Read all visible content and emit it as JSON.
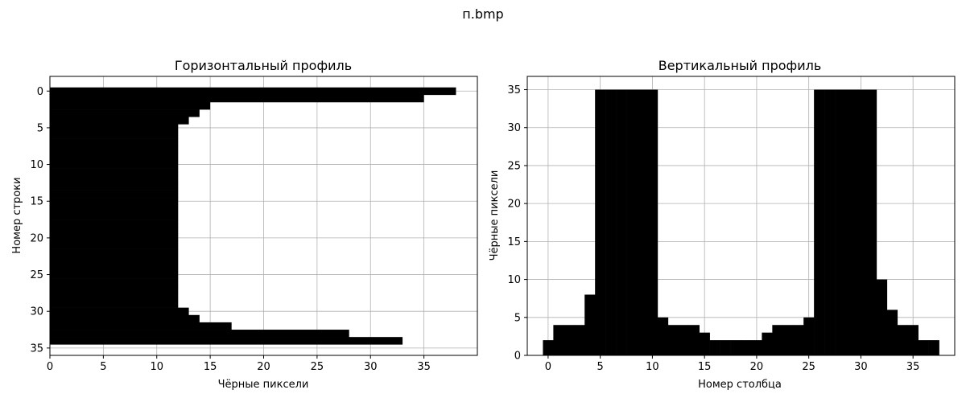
{
  "figure": {
    "suptitle": "п.bmp"
  },
  "chart_data": [
    {
      "type": "bar",
      "orientation": "horizontal",
      "title": "Горизонтальный профиль",
      "xlabel": "Чёрные пиксели",
      "ylabel": "Номер строки",
      "xlim": [
        0,
        40
      ],
      "ylim": [
        36,
        -2
      ],
      "y_inverted": true,
      "xticks": [
        0,
        5,
        10,
        15,
        20,
        25,
        30,
        35
      ],
      "yticks": [
        0,
        5,
        10,
        15,
        20,
        25,
        30,
        35
      ],
      "grid": true,
      "bar_color": "#000000",
      "categories": [
        0,
        1,
        2,
        3,
        4,
        5,
        6,
        7,
        8,
        9,
        10,
        11,
        12,
        13,
        14,
        15,
        16,
        17,
        18,
        19,
        20,
        21,
        22,
        23,
        24,
        25,
        26,
        27,
        28,
        29,
        30,
        31,
        32,
        33,
        34
      ],
      "values": [
        38,
        35,
        15,
        14,
        13,
        12,
        12,
        12,
        12,
        12,
        12,
        12,
        12,
        12,
        12,
        12,
        12,
        12,
        12,
        12,
        12,
        12,
        12,
        12,
        12,
        12,
        12,
        12,
        12,
        12,
        13,
        14,
        17,
        28,
        33
      ]
    },
    {
      "type": "bar",
      "orientation": "vertical",
      "title": "Вертикальный профиль",
      "xlabel": "Номер столбца",
      "ylabel": "Чёрные пиксели",
      "xlim": [
        -2,
        39
      ],
      "ylim": [
        0,
        36.75
      ],
      "xticks": [
        0,
        5,
        10,
        15,
        20,
        25,
        30,
        35
      ],
      "yticks": [
        0,
        5,
        10,
        15,
        20,
        25,
        30,
        35
      ],
      "grid": true,
      "bar_color": "#000000",
      "categories": [
        0,
        1,
        2,
        3,
        4,
        5,
        6,
        7,
        8,
        9,
        10,
        11,
        12,
        13,
        14,
        15,
        16,
        17,
        18,
        19,
        20,
        21,
        22,
        23,
        24,
        25,
        26,
        27,
        28,
        29,
        30,
        31,
        32,
        33,
        34,
        35,
        36,
        37
      ],
      "values": [
        2,
        4,
        4,
        4,
        8,
        35,
        35,
        35,
        35,
        35,
        35,
        5,
        4,
        4,
        4,
        3,
        2,
        2,
        2,
        2,
        2,
        3,
        4,
        4,
        4,
        5,
        35,
        35,
        35,
        35,
        35,
        35,
        10,
        6,
        4,
        4,
        2,
        2
      ]
    }
  ]
}
